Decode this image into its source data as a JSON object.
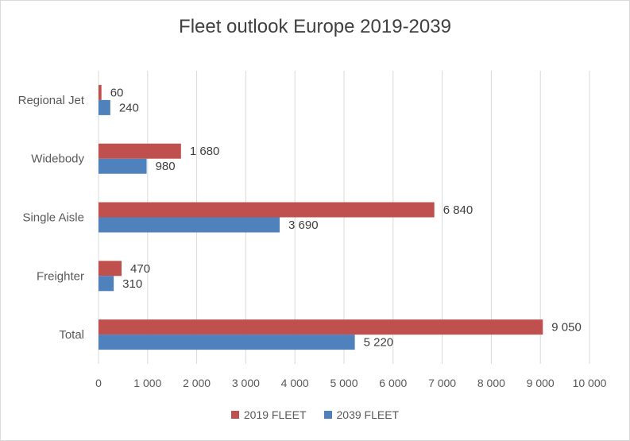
{
  "chart_data": {
    "type": "bar",
    "orientation": "horizontal",
    "title": "Fleet outlook Europe 2019-2039",
    "categories": [
      "Regional Jet",
      "Widebody",
      "Single Aisle",
      "Freighter",
      "Total"
    ],
    "series": [
      {
        "name": "2019 FLEET",
        "color": "#c0504d",
        "values": [
          60,
          1680,
          6840,
          470,
          9050
        ],
        "labels": [
          "60",
          "1 680",
          "6 840",
          "470",
          "9 050"
        ]
      },
      {
        "name": "2039 FLEET",
        "color": "#4f81bd",
        "values": [
          240,
          980,
          3690,
          310,
          5220
        ],
        "labels": [
          "240",
          "980",
          "3 690",
          "310",
          "5 220"
        ]
      }
    ],
    "xlim": [
      0,
      10000
    ],
    "x_ticks": [
      0,
      1000,
      2000,
      3000,
      4000,
      5000,
      6000,
      7000,
      8000,
      9000,
      10000
    ],
    "x_tick_labels": [
      "0",
      "1 000",
      "2 000",
      "3 000",
      "4 000",
      "5 000",
      "6 000",
      "7 000",
      "8 000",
      "9 000",
      "10 000"
    ],
    "grid": true,
    "legend_position": "bottom"
  }
}
